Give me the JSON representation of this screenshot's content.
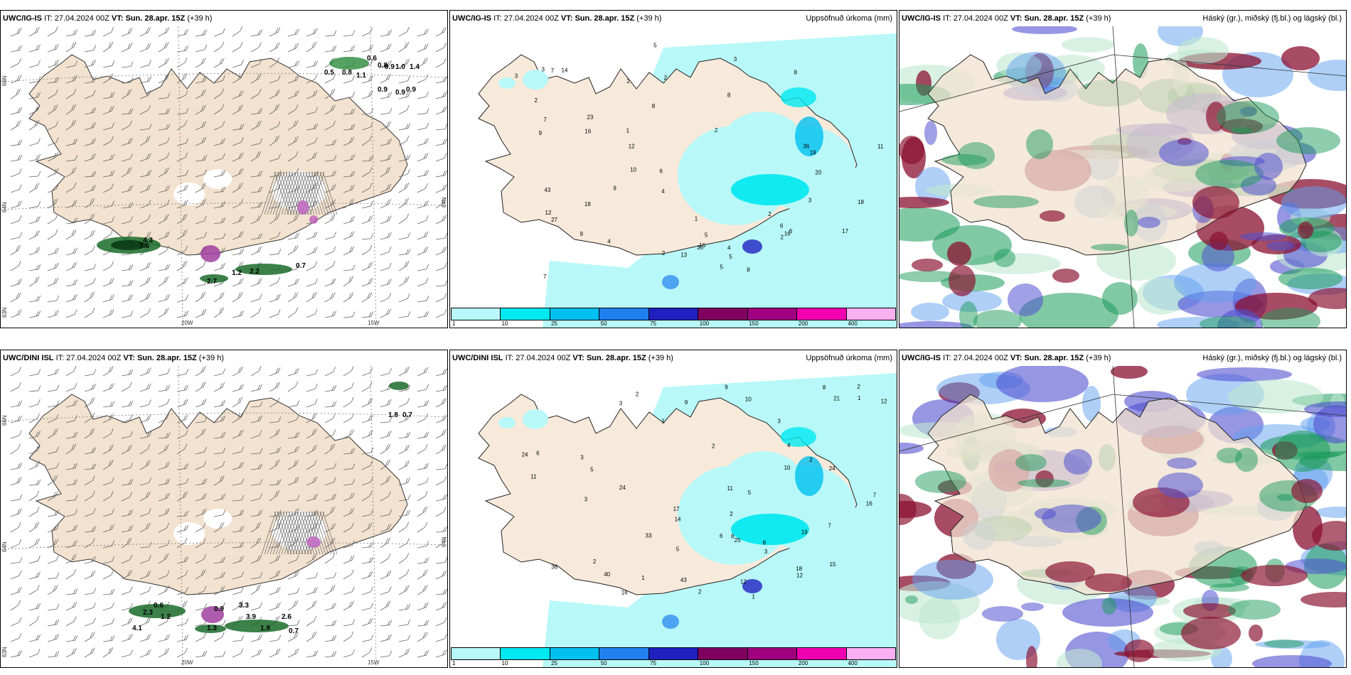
{
  "panels": [
    {
      "model": "UWC/IG-IS",
      "it_prefix": "IT: ",
      "it": "27.04.2024 00Z",
      "vt_prefix": "VT: ",
      "vt": "Sun. 28.apr. 15Z",
      "lead": "(+39 h)",
      "right": ""
    },
    {
      "model": "UWC/IG-IS",
      "it_prefix": "IT: ",
      "it": "27.04.2024 00Z",
      "vt_prefix": "VT: ",
      "vt": "Sun. 28.apr. 15Z",
      "lead": "(+39 h)",
      "right": "Uppsöfnuð úrkoma (mm)"
    },
    {
      "model": "UWC/IG-IS",
      "it_prefix": "IT: ",
      "it": "27.04.2024 00Z",
      "vt_prefix": "VT: ",
      "vt": "Sun. 28.apr. 15Z",
      "lead": "(+39 h)",
      "right": "Háský (gr.), miðský (fj.bl.) og lágský (bl.)"
    },
    {
      "model": "UWC/DINI ISL",
      "it_prefix": "IT: ",
      "it": "27.04.2024 00Z",
      "vt_prefix": "VT: ",
      "vt": "Sun. 28.apr. 15Z",
      "lead": "(+39 h)",
      "right": ""
    },
    {
      "model": "UWC/DINI ISL",
      "it_prefix": "IT: ",
      "it": "27.04.2024 00Z",
      "vt_prefix": "VT: ",
      "vt": "Sun. 28.apr. 15Z",
      "lead": "(+39 h)",
      "right": "Uppsöfnuð úrkoma (mm)"
    },
    {
      "model": "UWC/IG-IS",
      "it_prefix": "IT: ",
      "it": "27.04.2024 00Z",
      "vt_prefix": "VT: ",
      "vt": "Sun. 28.apr. 15Z",
      "lead": "(+39 h)",
      "right": "Háský (gr.), miðský (fj.bl.) og lágský (bl.)"
    }
  ],
  "axis_labels": {
    "lat66": "66N",
    "lat64": "64N",
    "lat63": "63N",
    "lon20": "20W",
    "lon15": "15W"
  },
  "colorbar": {
    "labels": [
      "1",
      "10",
      "25",
      "50",
      "75",
      "100",
      "150",
      "200",
      "400"
    ],
    "colors": [
      "#b8f8f8",
      "#00e8f0",
      "#00c0f0",
      "#2080f0",
      "#2020c0",
      "#800060",
      "#a00080",
      "#f000b0",
      "#f8b0f0"
    ]
  },
  "precip_top": [
    "2",
    "5",
    "2",
    "3",
    "11",
    "27",
    "16",
    "43",
    "36",
    "23",
    "18",
    "17",
    "13",
    "8",
    "8",
    "5",
    "6",
    "16",
    "18",
    "19",
    "14",
    "20",
    "16",
    "12",
    "4",
    "4",
    "3",
    "5",
    "2",
    "1",
    "3",
    "2",
    "3",
    "1",
    "2",
    "8",
    "7",
    "6",
    "6",
    "9",
    "7",
    "9",
    "10",
    "12",
    "9",
    "8",
    "7",
    "4",
    "5",
    "2",
    "35",
    "2"
  ],
  "precip_bottom": [
    "1",
    "3",
    "2",
    "3",
    "2",
    "12",
    "16",
    "24",
    "14",
    "40",
    "36",
    "24",
    "17",
    "8",
    "10",
    "8",
    "11",
    "21",
    "19",
    "24",
    "18",
    "25",
    "16",
    "12",
    "5",
    "4",
    "3",
    "5",
    "2",
    "1",
    "3",
    "2",
    "3",
    "1",
    "2",
    "43",
    "9",
    "6",
    "7",
    "8",
    "9",
    "11",
    "12",
    "15",
    "10",
    "7",
    "6",
    "5",
    "2",
    "1",
    "33",
    "2"
  ],
  "snow_top": [
    "0.6",
    "0.8",
    "0.5",
    "0.8",
    "1.1",
    "0.9",
    "1.0",
    "1.4",
    "0.9",
    "0.9",
    "0.9",
    "4.3",
    "7.6",
    "0.7",
    "1.2",
    "2.7",
    "2.2"
  ],
  "snow_bottom": [
    "1.8",
    "0.7",
    "0.6",
    "2.3",
    "1.2",
    "0.9",
    "3.3",
    "3.9",
    "2.6",
    "1.3",
    "1.9",
    "0.7",
    "4.1"
  ]
}
